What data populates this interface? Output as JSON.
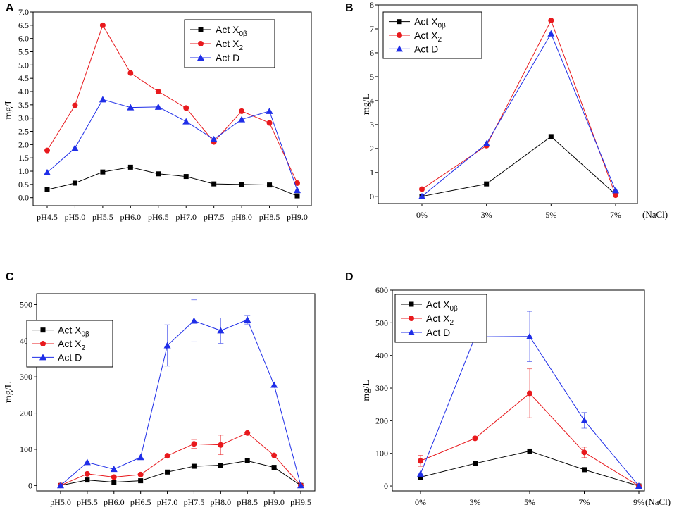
{
  "chart_data": [
    {
      "panel": "A",
      "type": "line",
      "ylabel": "mg/L",
      "xlabel_extra": "",
      "categories": [
        "pH4.5",
        "pH5.0",
        "pH5.5",
        "pH6.0",
        "pH6.5",
        "pH7.0",
        "pH7.5",
        "pH8.0",
        "pH8.5",
        "pH9.0"
      ],
      "ylim": [
        -0.3,
        7.0
      ],
      "yticks": [
        0.0,
        0.5,
        1.0,
        1.5,
        2.0,
        2.5,
        3.0,
        3.5,
        4.0,
        4.5,
        5.0,
        5.5,
        6.0,
        6.5,
        7.0
      ],
      "ytick_labels": [
        "0.0",
        "0.5",
        "1.0",
        "1.5",
        "2.0",
        "2.5",
        "3.0",
        "3.5",
        "4.0",
        "4.5",
        "5.0",
        "5.5",
        "6.0",
        "6.5",
        "7.0"
      ],
      "legend": {
        "position": "top-right"
      },
      "series": [
        {
          "name": "Act X",
          "sub": "0β",
          "marker": "square",
          "color": "#000000",
          "values": [
            0.3,
            0.55,
            0.97,
            1.15,
            0.9,
            0.8,
            0.52,
            0.5,
            0.48,
            0.07
          ]
        },
        {
          "name": "Act X",
          "sub": "2",
          "marker": "circle",
          "color": "#e8191d",
          "values": [
            1.78,
            3.48,
            6.5,
            4.7,
            4.0,
            3.38,
            2.1,
            3.26,
            2.82,
            0.55
          ]
        },
        {
          "name": "Act D",
          "sub": "",
          "marker": "triangle",
          "color": "#1f2ee8",
          "values": [
            0.95,
            1.87,
            3.7,
            3.4,
            3.42,
            2.87,
            2.2,
            2.95,
            3.26,
            0.28
          ]
        }
      ]
    },
    {
      "panel": "B",
      "type": "line",
      "ylabel": "mg/L",
      "xlabel_extra": "(NaCl)",
      "categories": [
        "0%",
        "3%",
        "5%",
        "7%"
      ],
      "ylim": [
        -0.3,
        8.0
      ],
      "yticks": [
        0,
        1,
        2,
        3,
        4,
        5,
        6,
        7,
        8
      ],
      "ytick_labels": [
        "0",
        "1",
        "2",
        "3",
        "4",
        "5",
        "6",
        "7",
        "8"
      ],
      "legend": {
        "position": "top-left"
      },
      "series": [
        {
          "name": "Act X",
          "sub": "0β",
          "marker": "square",
          "color": "#000000",
          "values": [
            0.0,
            0.52,
            2.5,
            0.08
          ]
        },
        {
          "name": "Act X",
          "sub": "2",
          "marker": "circle",
          "color": "#e8191d",
          "values": [
            0.3,
            2.12,
            7.35,
            0.05
          ]
        },
        {
          "name": "Act D",
          "sub": "",
          "marker": "triangle",
          "color": "#1f2ee8",
          "values": [
            0.0,
            2.2,
            6.8,
            0.25
          ]
        }
      ]
    },
    {
      "panel": "C",
      "type": "line",
      "ylabel": "mg/L",
      "xlabel_extra": "",
      "categories": [
        "pH5.0",
        "pH5.5",
        "pH6.0",
        "pH6.5",
        "pH7.0",
        "pH7.5",
        "pH8.0",
        "pH8.5",
        "pH9.0",
        "pH9.5"
      ],
      "ylim": [
        -15,
        530
      ],
      "yticks": [
        0,
        100,
        200,
        300,
        400,
        500
      ],
      "ytick_labels": [
        "0",
        "100",
        "200",
        "300",
        "400",
        "500"
      ],
      "legend": {
        "position": "upper-left"
      },
      "series": [
        {
          "name": "Act X",
          "sub": "0β",
          "marker": "square",
          "color": "#000000",
          "values": [
            0,
            15,
            9,
            13,
            37,
            53,
            56,
            68,
            50,
            0
          ],
          "errors": [
            0,
            0,
            0,
            0,
            0,
            0,
            0,
            0,
            0,
            0
          ]
        },
        {
          "name": "Act X",
          "sub": "2",
          "marker": "circle",
          "color": "#e8191d",
          "values": [
            0,
            32,
            23,
            30,
            82,
            115,
            112,
            145,
            83,
            0
          ],
          "errors": [
            0,
            0,
            0,
            0,
            0,
            12,
            27,
            0,
            0,
            0
          ]
        },
        {
          "name": "Act D",
          "sub": "",
          "marker": "triangle",
          "color": "#1f2ee8",
          "values": [
            0,
            64,
            45,
            78,
            387,
            455,
            428,
            458,
            278,
            0
          ],
          "errors": [
            0,
            0,
            0,
            0,
            57,
            58,
            35,
            12,
            0,
            0
          ]
        }
      ]
    },
    {
      "panel": "D",
      "type": "line",
      "ylabel": "mg/L",
      "xlabel_extra": "(NaCl)",
      "categories": [
        "0%",
        "3%",
        "5%",
        "7%",
        "9%"
      ],
      "ylim": [
        -15,
        600
      ],
      "yticks": [
        0,
        100,
        200,
        300,
        400,
        500,
        600
      ],
      "ytick_labels": [
        "0",
        "100",
        "200",
        "300",
        "400",
        "500",
        "600"
      ],
      "legend": {
        "position": "top-left"
      },
      "series": [
        {
          "name": "Act X",
          "sub": "0β",
          "marker": "square",
          "color": "#000000",
          "values": [
            27,
            69,
            107,
            50,
            0
          ],
          "errors": [
            0,
            0,
            0,
            0,
            0
          ]
        },
        {
          "name": "Act X",
          "sub": "2",
          "marker": "circle",
          "color": "#e8191d",
          "values": [
            77,
            146,
            284,
            103,
            0
          ],
          "errors": [
            17,
            0,
            75,
            16,
            0
          ]
        },
        {
          "name": "Act D",
          "sub": "",
          "marker": "triangle",
          "color": "#1f2ee8",
          "values": [
            37,
            457,
            458,
            201,
            0
          ],
          "errors": [
            0,
            14,
            77,
            24,
            0
          ]
        }
      ]
    }
  ]
}
